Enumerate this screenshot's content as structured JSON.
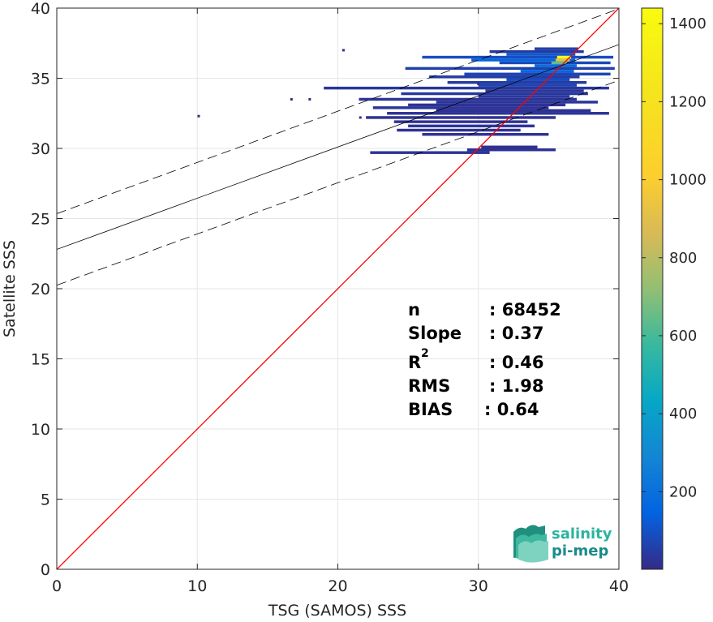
{
  "chart_data": {
    "type": "heatmap",
    "title": "",
    "xlabel": "TSG (SAMOS) SSS",
    "ylabel": "Satellite SSS",
    "xlim": [
      0,
      40
    ],
    "ylim": [
      0,
      40
    ],
    "xticks": [
      0,
      10,
      20,
      30,
      40
    ],
    "yticks": [
      0,
      5,
      10,
      15,
      20,
      25,
      30,
      35,
      40
    ],
    "grid": true,
    "colorbar": {
      "colormap": "parula",
      "range": [
        1,
        1440
      ],
      "ticks": [
        200,
        400,
        600,
        800,
        1000,
        1200,
        1400
      ]
    },
    "reference_lines": [
      {
        "name": "1:1 line",
        "color": "#ff0000",
        "intercept": 0,
        "slope": 1
      },
      {
        "name": "regression fit",
        "color": "#000000",
        "intercept": 22.8,
        "slope": 0.365
      },
      {
        "name": "upper bound",
        "color": "#000000",
        "style": "dashed",
        "intercept": 25.35,
        "slope": 0.365
      },
      {
        "name": "lower bound",
        "color": "#000000",
        "style": "dashed",
        "intercept": 20.25,
        "slope": 0.365
      }
    ],
    "density_rows": [
      {
        "y": 37.1,
        "x0": 34.0,
        "x1": 37.1,
        "count": 60
      },
      {
        "y": 36.9,
        "x0": 30.8,
        "x1": 37.5,
        "count": 40
      },
      {
        "y": 36.7,
        "x0": 32.0,
        "x1": 36.9,
        "count": 120
      },
      {
        "y": 36.5,
        "x0": 26.0,
        "x1": 39.6,
        "count": 90
      },
      {
        "y": 36.3,
        "x0": 29.5,
        "x1": 36.9,
        "count": 150
      },
      {
        "y": 36.1,
        "x0": 31.5,
        "x1": 39.4,
        "count": 80
      },
      {
        "y": 35.9,
        "x0": 34.0,
        "x1": 37.0,
        "count": 180
      },
      {
        "y": 35.7,
        "x0": 24.8,
        "x1": 39.7,
        "count": 60
      },
      {
        "y": 35.5,
        "x0": 33.0,
        "x1": 36.8,
        "count": 160
      },
      {
        "y": 35.3,
        "x0": 29.0,
        "x1": 39.4,
        "count": 70
      },
      {
        "y": 35.1,
        "x0": 26.5,
        "x1": 37.2,
        "count": 50
      },
      {
        "y": 34.9,
        "x0": 32.0,
        "x1": 36.5,
        "count": 90
      },
      {
        "y": 34.7,
        "x0": 27.8,
        "x1": 37.7,
        "count": 45
      },
      {
        "y": 34.5,
        "x0": 30.0,
        "x1": 37.0,
        "count": 70
      },
      {
        "y": 34.3,
        "x0": 19.0,
        "x1": 39.3,
        "count": 35
      },
      {
        "y": 34.1,
        "x0": 30.5,
        "x1": 37.5,
        "count": 30
      },
      {
        "y": 33.9,
        "x0": 24.5,
        "x1": 37.8,
        "count": 40
      },
      {
        "y": 33.7,
        "x0": 30.0,
        "x1": 36.5,
        "count": 35
      },
      {
        "y": 33.5,
        "x0": 21.5,
        "x1": 37.0,
        "count": 25
      },
      {
        "y": 33.3,
        "x0": 27.0,
        "x1": 38.5,
        "count": 30
      },
      {
        "y": 33.1,
        "x0": 25.0,
        "x1": 36.2,
        "count": 20
      },
      {
        "y": 32.9,
        "x0": 22.5,
        "x1": 35.0,
        "count": 30
      },
      {
        "y": 32.7,
        "x0": 27.0,
        "x1": 38.0,
        "count": 20
      },
      {
        "y": 32.5,
        "x0": 23.5,
        "x1": 39.3,
        "count": 25
      },
      {
        "y": 32.2,
        "x0": 22.0,
        "x1": 35.5,
        "count": 18
      },
      {
        "y": 31.9,
        "x0": 24.0,
        "x1": 33.5,
        "count": 20
      },
      {
        "y": 31.6,
        "x0": 25.0,
        "x1": 34.0,
        "count": 25
      },
      {
        "y": 31.3,
        "x0": 24.2,
        "x1": 33.0,
        "count": 15
      },
      {
        "y": 31.0,
        "x0": 26.0,
        "x1": 35.0,
        "count": 20
      },
      {
        "y": 30.1,
        "x0": 30.2,
        "x1": 34.2,
        "count": 15
      },
      {
        "y": 29.9,
        "x0": 29.2,
        "x1": 35.5,
        "count": 20
      },
      {
        "y": 29.7,
        "x0": 22.3,
        "x1": 30.8,
        "count": 30
      },
      {
        "y": 36.5,
        "x0": 35.6,
        "x1": 36.6,
        "count": 1440
      },
      {
        "y": 36.3,
        "x0": 35.5,
        "x1": 36.5,
        "count": 900
      },
      {
        "y": 36.1,
        "x0": 35.2,
        "x1": 36.3,
        "count": 650
      }
    ],
    "isolated_bins": [
      {
        "x": 20.4,
        "y": 37.0
      },
      {
        "x": 16.7,
        "y": 33.5
      },
      {
        "x": 18.0,
        "y": 33.5
      },
      {
        "x": 10.1,
        "y": 32.3
      },
      {
        "x": 21.6,
        "y": 32.2
      },
      {
        "x": 30.0,
        "y": 34.6
      }
    ]
  },
  "stats": {
    "n_label": "n",
    "n_value": ": 68452",
    "slope_label": "Slope",
    "slope_value": ": 0.37",
    "r2_label": "R",
    "r2_sup": "2",
    "r2_value": ": 0.46",
    "rms_label": "RMS",
    "rms_value": ": 1.98",
    "bias_label": "BIAS",
    "bias_value": ": 0.64"
  },
  "logo": {
    "line1": "salinity",
    "line2": "pi-mep",
    "color1": "#2bb3a0",
    "color2": "#1a8a8a"
  }
}
